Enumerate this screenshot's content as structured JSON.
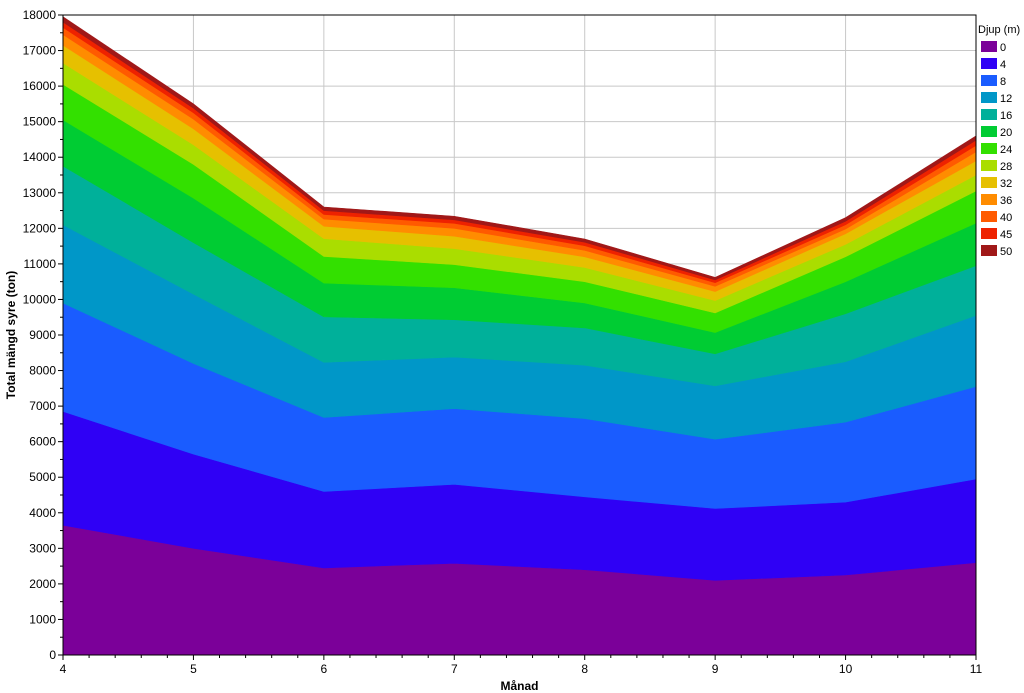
{
  "chart_data": {
    "type": "area",
    "stacked": true,
    "xlabel": "Månad",
    "ylabel": "Total mängd syre (ton)",
    "xlim": [
      4,
      11
    ],
    "ylim": [
      0,
      18000
    ],
    "x": [
      4,
      5,
      6,
      7,
      8,
      9,
      10,
      11
    ],
    "x_ticks": [
      "4",
      "5",
      "6",
      "7",
      "8",
      "9",
      "10",
      "11"
    ],
    "y_ticks": [
      "0",
      "1000",
      "2000",
      "3000",
      "4000",
      "5000",
      "6000",
      "7000",
      "8000",
      "9000",
      "10000",
      "11000",
      "12000",
      "13000",
      "14000",
      "15000",
      "16000",
      "17000",
      "18000"
    ],
    "grid": true,
    "legend": {
      "title": "Djup (m)",
      "position": "right"
    },
    "series": [
      {
        "name": "0",
        "color": "#7b0099",
        "values": [
          3650,
          3000,
          2450,
          2580,
          2400,
          2100,
          2250,
          2600
        ]
      },
      {
        "name": "4",
        "color": "#2f00f5",
        "values": [
          3200,
          2650,
          2150,
          2220,
          2050,
          2020,
          2050,
          2350
        ]
      },
      {
        "name": "8",
        "color": "#1a5cff",
        "values": [
          3050,
          2550,
          2080,
          2130,
          2200,
          1950,
          2250,
          2600
        ]
      },
      {
        "name": "12",
        "color": "#0097c8",
        "values": [
          2200,
          1950,
          1550,
          1450,
          1500,
          1500,
          1700,
          2000
        ]
      },
      {
        "name": "16",
        "color": "#00b09a",
        "values": [
          1650,
          1450,
          1280,
          1050,
          1050,
          900,
          1350,
          1400
        ]
      },
      {
        "name": "20",
        "color": "#00cc33",
        "values": [
          1300,
          1250,
          950,
          900,
          700,
          600,
          900,
          1200
        ]
      },
      {
        "name": "24",
        "color": "#33e000",
        "values": [
          1000,
          950,
          750,
          650,
          600,
          550,
          700,
          900
        ]
      },
      {
        "name": "28",
        "color": "#aadd00",
        "values": [
          600,
          550,
          500,
          450,
          400,
          350,
          350,
          450
        ]
      },
      {
        "name": "32",
        "color": "#e6c000",
        "values": [
          500,
          450,
          350,
          350,
          300,
          250,
          300,
          400
        ]
      },
      {
        "name": "36",
        "color": "#ff8c00",
        "values": [
          300,
          270,
          200,
          220,
          180,
          150,
          130,
          250
        ]
      },
      {
        "name": "40",
        "color": "#ff5a00",
        "values": [
          200,
          180,
          130,
          140,
          130,
          100,
          120,
          180
        ]
      },
      {
        "name": "45",
        "color": "#ee2200",
        "values": [
          150,
          130,
          110,
          100,
          100,
          80,
          100,
          150
        ]
      },
      {
        "name": "50",
        "color": "#a01818",
        "values": [
          150,
          120,
          100,
          100,
          90,
          70,
          100,
          120
        ]
      }
    ]
  }
}
